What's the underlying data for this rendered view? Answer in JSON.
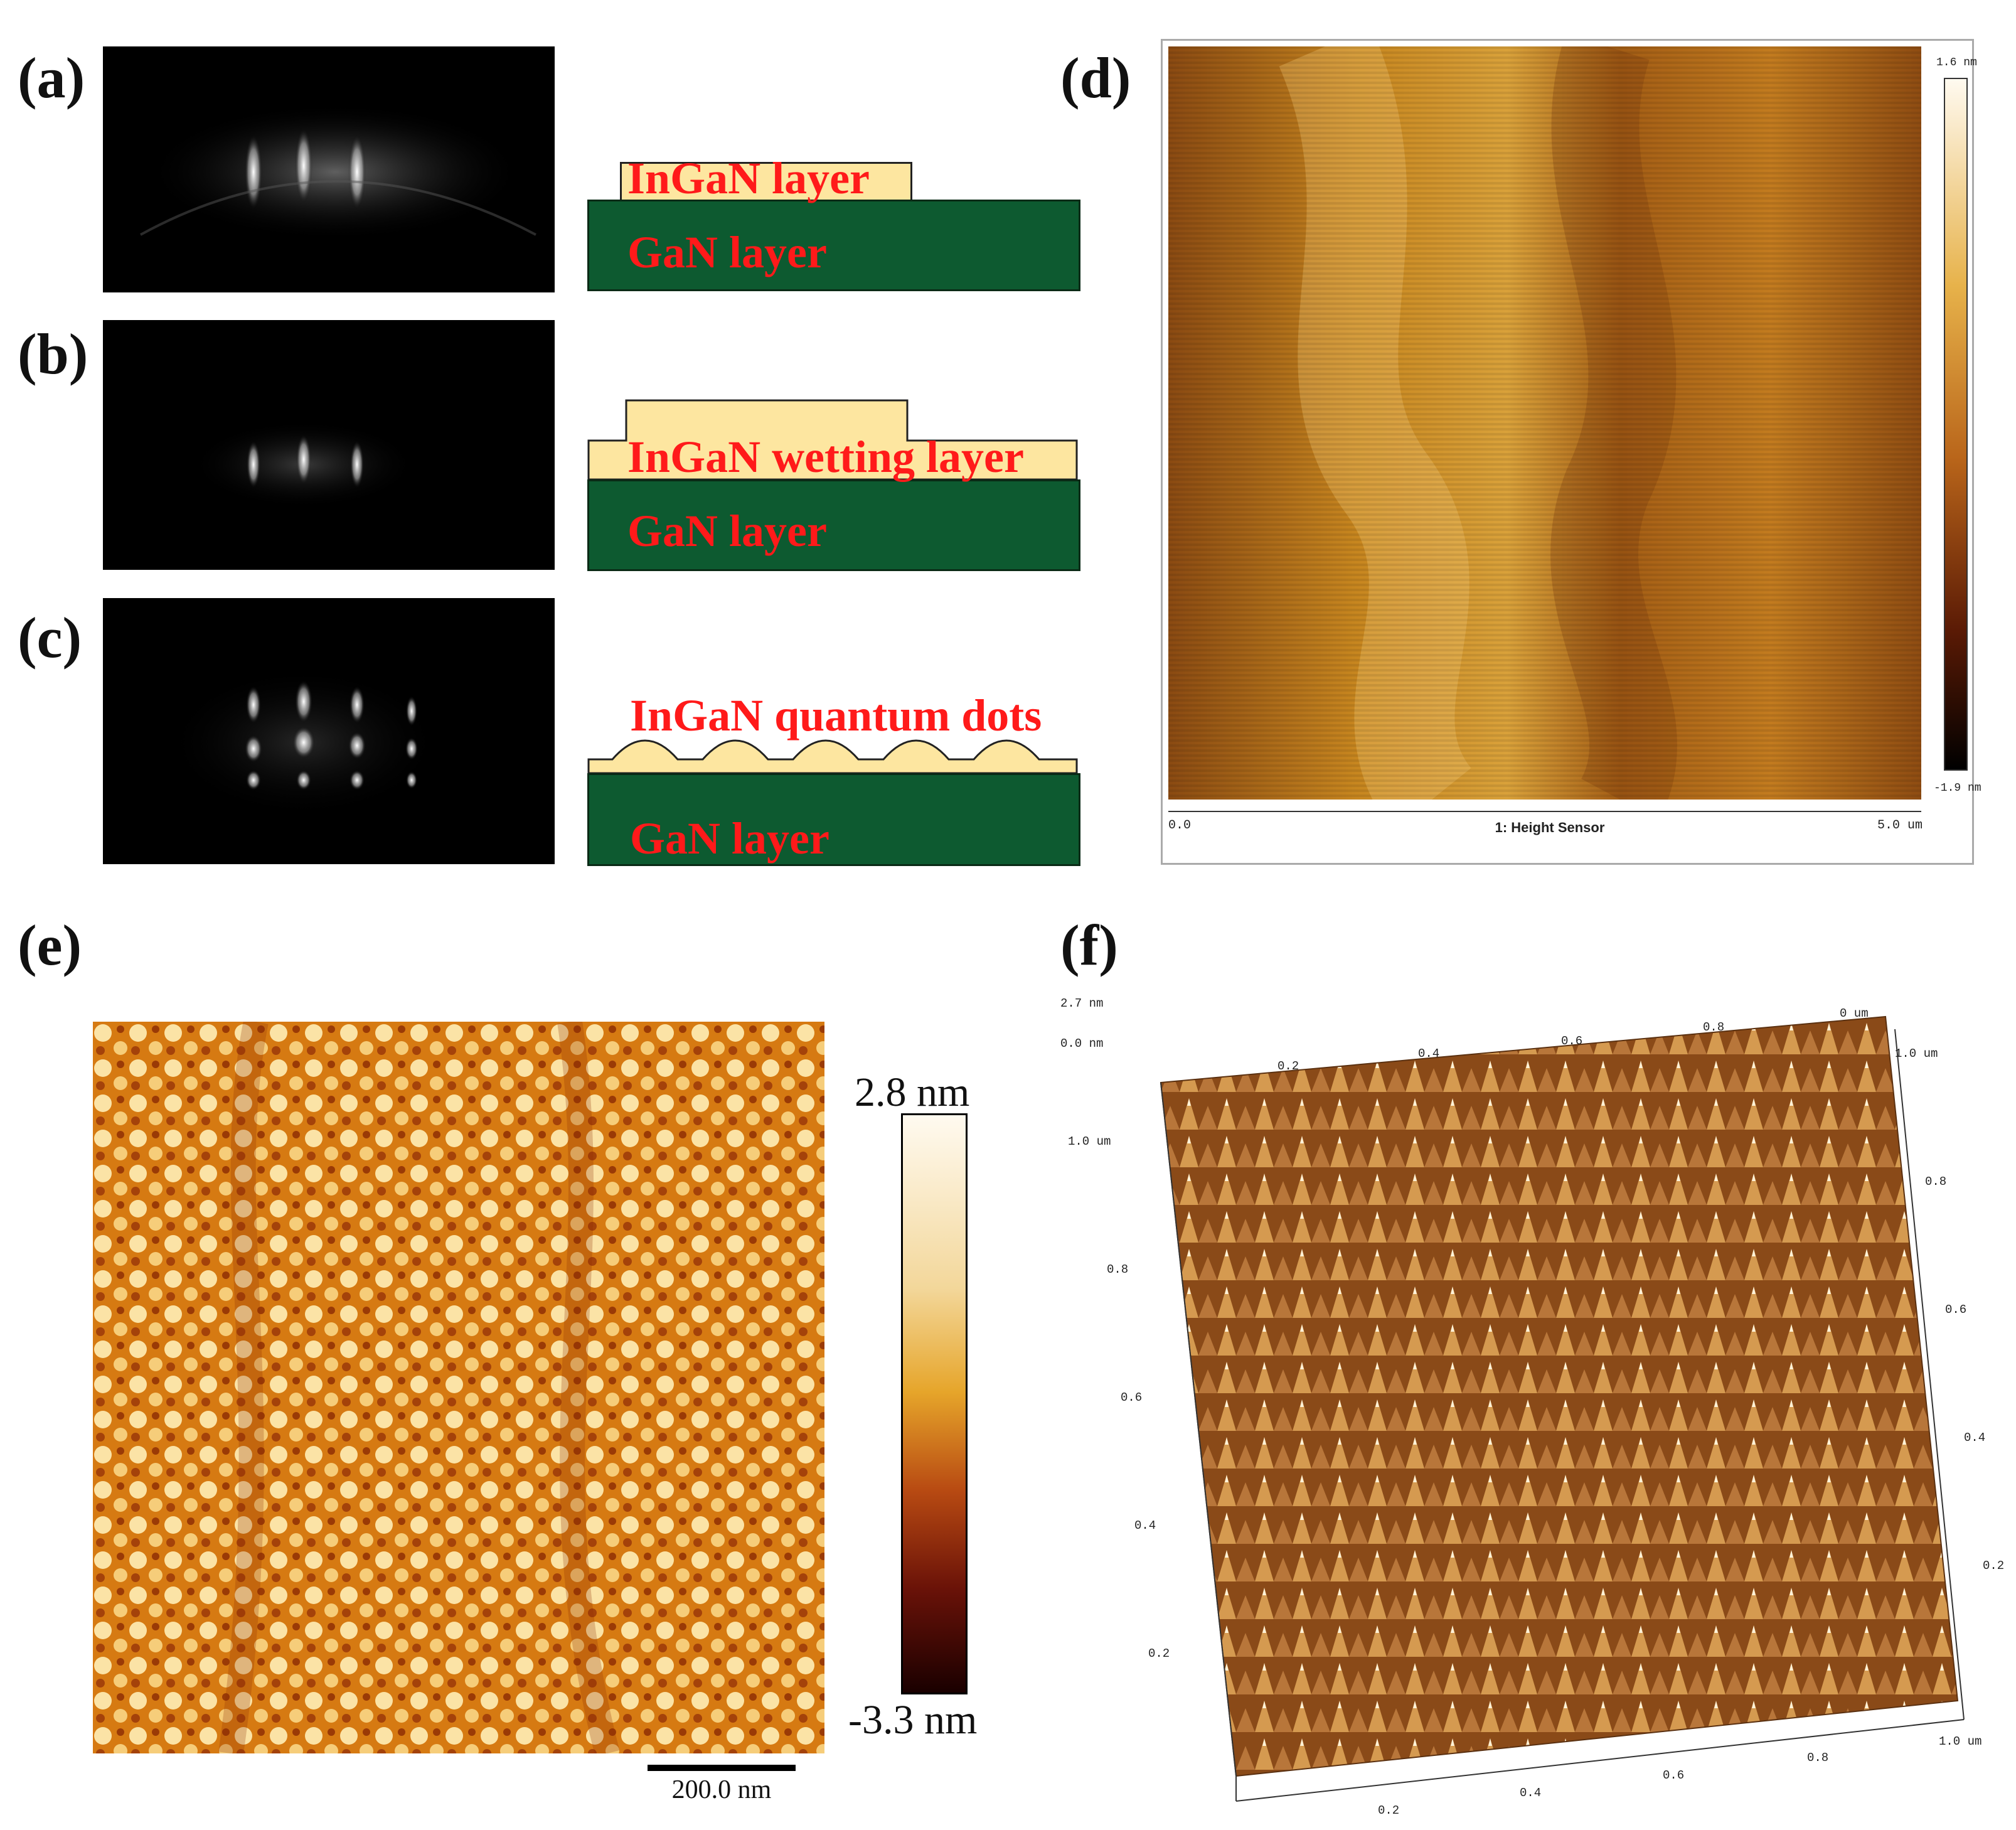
{
  "panels": {
    "a": {
      "label": "(a)",
      "top_layer": "InGaN layer",
      "bottom_layer": "GaN layer"
    },
    "b": {
      "label": "(b)",
      "top_layer": "InGaN wetting layer",
      "bottom_layer": "GaN layer"
    },
    "c": {
      "label": "(c)",
      "top_layer": "InGaN quantum dots",
      "bottom_layer": "GaN layer"
    },
    "d": {
      "label": "(d)",
      "scale_max": "1.6 nm",
      "scale_min": "-1.9 nm",
      "axis_start": "0.0",
      "axis_end": "5.0 um",
      "channel": "1: Height Sensor"
    },
    "e": {
      "label": "(e)",
      "scale_max": "2.8 nm",
      "scale_min": "-3.3 nm",
      "scalebar": "200.0 nm"
    },
    "f": {
      "label": "(f)",
      "z_max": "2.7 nm",
      "z_min": "0.0 nm",
      "left_axis": [
        "1.0 um",
        "0.8",
        "0.6",
        "0.4",
        "0.2"
      ],
      "right_axis": [
        "1.0 um",
        "0.8",
        "0.6",
        "0.4",
        "0.2"
      ],
      "bottom_axis": [
        "0.2",
        "0.4",
        "0.6",
        "0.8",
        "1.0 um"
      ],
      "top_axis": [
        "0.2",
        "0.4",
        "0.6",
        "0.8",
        "0 um"
      ]
    }
  },
  "colors": {
    "gan": "#0d5a30",
    "ingan": "#fde6a0",
    "label_red": "#ff1a1a"
  }
}
